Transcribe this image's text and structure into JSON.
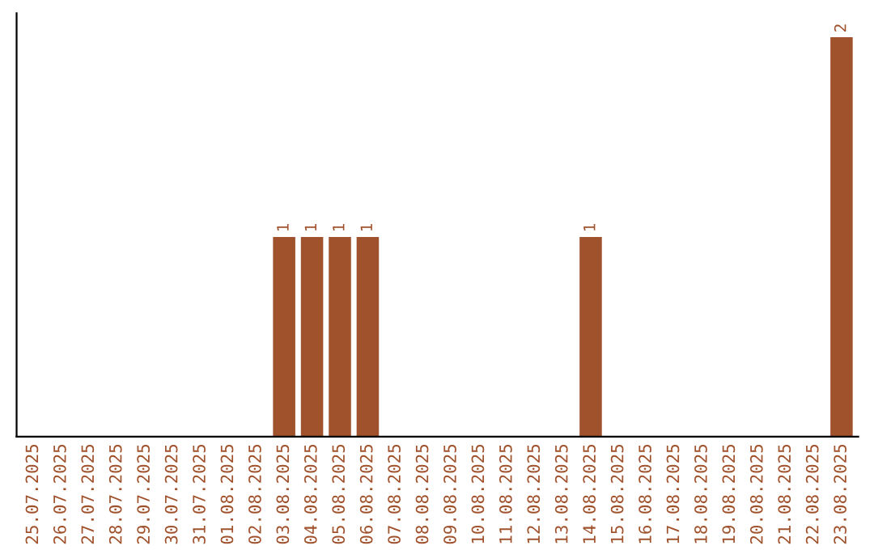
{
  "chart_data": {
    "type": "bar",
    "categories": [
      "25.07.2025",
      "26.07.2025",
      "27.07.2025",
      "28.07.2025",
      "29.07.2025",
      "30.07.2025",
      "31.07.2025",
      "01.08.2025",
      "02.08.2025",
      "03.08.2025",
      "04.08.2025",
      "05.08.2025",
      "06.08.2025",
      "07.08.2025",
      "08.08.2025",
      "09.08.2025",
      "10.08.2025",
      "11.08.2025",
      "12.08.2025",
      "13.08.2025",
      "14.08.2025",
      "15.08.2025",
      "16.08.2025",
      "17.08.2025",
      "18.08.2025",
      "19.08.2025",
      "20.08.2025",
      "21.08.2025",
      "22.08.2025",
      "23.08.2025"
    ],
    "values": [
      0,
      0,
      0,
      0,
      0,
      0,
      0,
      0,
      0,
      1,
      1,
      1,
      1,
      0,
      0,
      0,
      0,
      0,
      0,
      0,
      1,
      0,
      0,
      0,
      0,
      0,
      0,
      0,
      0,
      2
    ],
    "color": "#a0522d",
    "value_labels": [
      null,
      null,
      null,
      null,
      null,
      null,
      null,
      null,
      null,
      "1",
      "1",
      "1",
      "1",
      null,
      null,
      null,
      null,
      null,
      null,
      null,
      "1",
      null,
      null,
      null,
      null,
      null,
      null,
      null,
      null,
      "2"
    ],
    "grid": false,
    "legend": false,
    "tick_labels": "x"
  }
}
